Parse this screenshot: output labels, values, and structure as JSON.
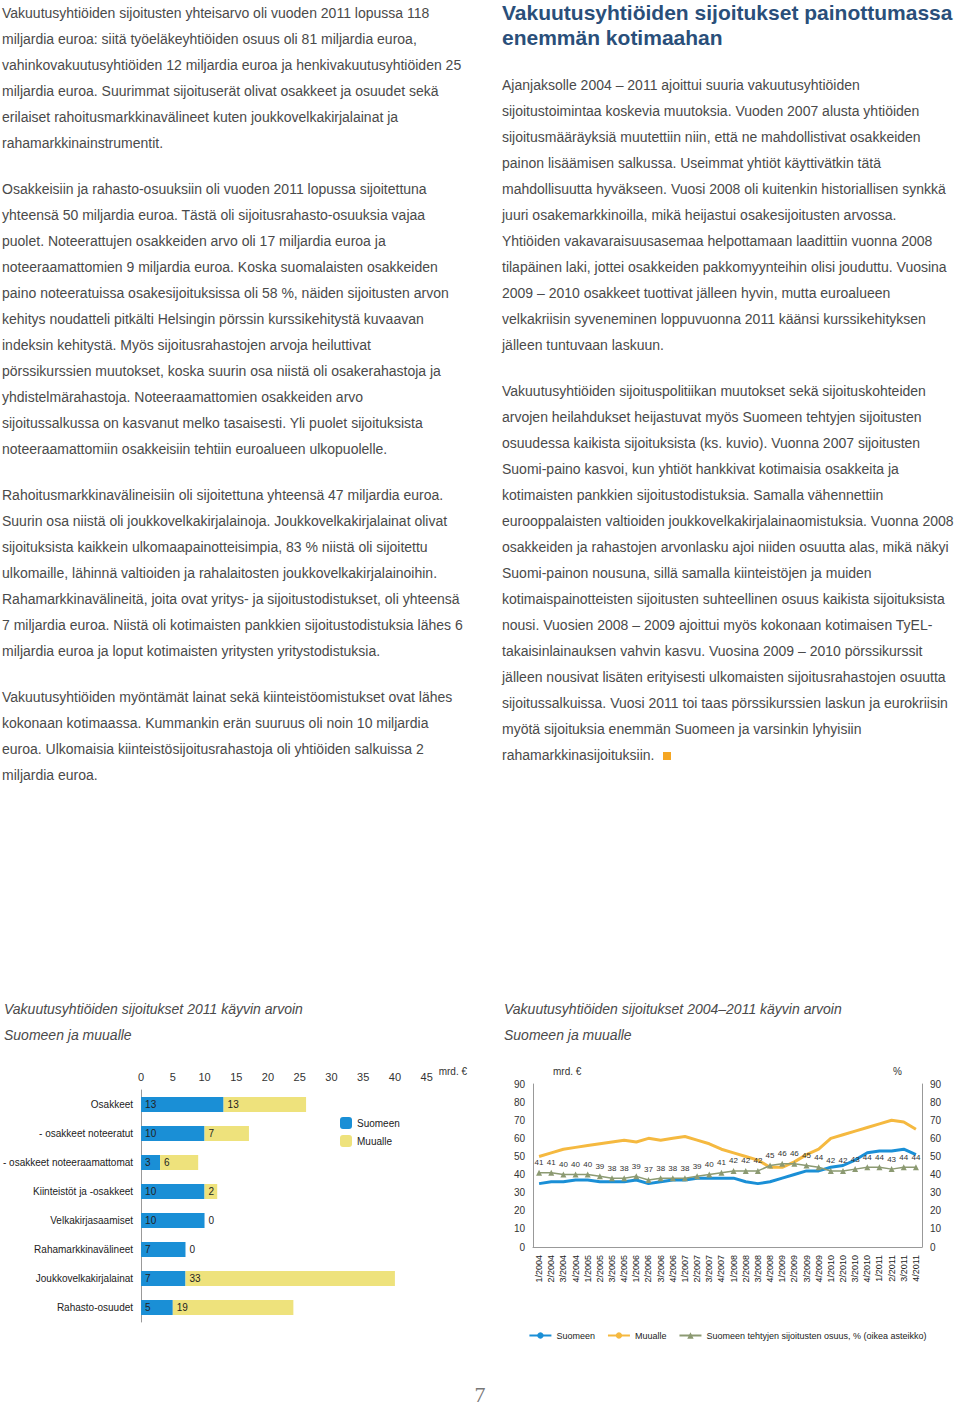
{
  "left_column": {
    "paragraphs": [
      "Vakuutusyhtiöiden sijoitusten yhteisarvo oli vuoden 2011 lopussa 118 miljardia euroa: siitä työeläkeyhtiöiden osuus oli 81 miljardia euroa, vahinkovakuutusyhtiöiden 12 miljardia euroa ja henkivakuutusyhtiöiden 25 miljardia euroa. Suurimmat sijoituserät olivat osakkeet ja osuudet sekä erilaiset rahoitusmarkkinavälineet kuten joukkovelkakirjalainat ja rahamarkkinainstrumentit.",
      "Osakkeisiin ja rahasto-osuuksiin oli vuoden 2011 lopussa sijoitettuna yhteensä 50 miljardia euroa. Tästä oli sijoitusrahasto-osuuksia vajaa puolet. Noteerattujen osakkeiden arvo oli 17 miljardia euroa ja noteeraamattomien 9 miljardia euroa. Koska suomalaisten osakkeiden paino noteeratuissa osakesijoituksissa oli 58 %, näiden sijoitusten arvon kehitys noudatteli pitkälti Helsingin pörssin kurssikehitystä kuvaavan indeksin kehitystä. Myös sijoitusrahastojen arvoja heiluttivat pörssikurssien muutokset, koska suurin osa niistä oli osakerahastoja ja yhdistelmärahastoja. Noteeraamattomien osakkeiden arvo sijoitussalkussa on kasvanut melko tasaisesti. Yli puolet sijoituksista noteeraamattomiin osakkeisiin tehtiin euroalueen ulkopuolelle.",
      "Rahoitusmarkkinavälineisiin oli sijoitettuna yhteensä 47 miljardia euroa. Suurin osa niistä oli joukkovelkakirjalainoja. Joukkovelkakirjalainat olivat sijoituksista kaikkein ulkomaapainotteisimpia, 83 % niistä oli sijoitettu ulkomaille, lähinnä valtioiden ja rahalaitosten joukkovelkakirjalainoihin. Rahamarkkinavälineitä, joita ovat yritys- ja sijoitustodistukset, oli yhteensä 7 miljardia euroa. Niistä oli kotimaisten pankkien sijoitustodistuksia lähes 6 miljardia euroa ja loput kotimaisten yritysten yritystodistuksia.",
      "Vakuutusyhtiöiden myöntämät lainat sekä kiinteistöomistukset ovat lähes kokonaan kotimaassa. Kummankin erän suuruus oli noin 10 miljardia euroa. Ulkomaisia kiinteistösijoitusrahastoja oli yhtiöiden salkuissa 2 miljardia euroa."
    ]
  },
  "right_column": {
    "heading": "Vakuutusyhtiöiden sijoitukset painottumassa enemmän kotimaahan",
    "paragraphs": [
      "Ajanjaksolle 2004 – 2011 ajoittui suuria vakuutusyhtiöiden sijoitustoimintaa koskevia muutoksia. Vuoden 2007 alusta yhtiöiden sijoitusmääräyksiä muutettiin niin, että ne mahdollistivat osakkeiden painon lisäämisen salkussa. Useimmat yhtiöt käyttivätkin tätä mahdollisuutta hyväkseen. Vuosi 2008 oli kuitenkin historiallisen synkkä juuri osakemarkkinoilla, mikä heijastui osakesijoitusten arvossa. Yhtiöiden vakavaraisuusasemaa helpottamaan laadittiin vuonna 2008 tilapäinen laki, jottei osakkeiden pakkomyynteihin olisi jouduttu. Vuosina 2009 – 2010 osakkeet tuottivat jälleen hyvin, mutta euroalueen velkakriisin syveneminen loppuvuonna 2011 käänsi kurssikehityksen jälleen tuntuvaan laskuun.",
      "Vakuutusyhtiöiden sijoituspolitiikan muutokset sekä sijoituskohteiden arvojen heilahdukset heijastuvat myös Suomeen tehtyjen sijoitusten osuudessa kaikista sijoituksista (ks. kuvio). Vuonna 2007 sijoitusten Suomi-paino kasvoi, kun yhtiöt hankkivat kotimaisia osakkeita ja kotimaisten pankkien sijoitustodistuksia. Samalla vähennettiin eurooppalaisten valtioiden joukkovelkakirjalainaomistuksia. Vuonna 2008 osakkeiden ja rahastojen arvonlasku ajoi niiden osuutta alas, mikä näkyi Suomi-painon nousuna, sillä samalla kiinteistöjen ja muiden kotimaispainotteisten sijoitusten suhteellinen osuus kaikista sijoituksista nousi. Vuosien 2008 – 2009 ajoittui myös kokonaan kotimaisen TyEL-takaisinlainauksen vahvin kasvu. Vuosina 2009 – 2010 pörssikurssit jälleen nousivat lisäten erityisesti ulkomaisten sijoitusrahastojen osuutta sijoitussalkuissa. Vuosi 2011 toi taas pörssikurssien laskun ja eurokriisin myötä sijoituksia enemmän Suomeen ja varsinkin lyhyisiin rahamarkkinasijoituksiin."
    ]
  },
  "chart_data": [
    {
      "type": "bar",
      "title": "Vakuutusyhtiöiden sijoitukset 2011 käyvin arvoin\nSuomeen ja muualle",
      "orientation": "horizontal",
      "stacked": true,
      "data_labels": true,
      "legend": "right",
      "grid": false,
      "x_label": "mrd. €",
      "xlim": [
        0,
        45
      ],
      "xticks": [
        0,
        5,
        10,
        15,
        20,
        25,
        30,
        35,
        40,
        45
      ],
      "categories": [
        "Osakkeet",
        "- osakkeet noteeratut",
        "- osakkeet noteeraamattomat",
        "Kiinteistöt ja -osakkeet",
        "Velkakirjasaamiset",
        "Rahamarkkinavälineet",
        "Joukkovelkakirjalainat",
        "Rahasto-osuudet"
      ],
      "series": [
        {
          "name": "Suomeen",
          "color": "#1a8fd6",
          "values": [
            13,
            10,
            3,
            10,
            10,
            7,
            7,
            5
          ]
        },
        {
          "name": "Muualle",
          "color": "#eee27c",
          "values": [
            13,
            7,
            6,
            2,
            0,
            0,
            33,
            19
          ]
        }
      ]
    },
    {
      "type": "line",
      "title": "Vakuutusyhtiöiden sijoitukset 2004–2011 käyvin arvoin\nSuomeen ja muualle",
      "legend": "bottom",
      "grid": false,
      "y_label": "mrd. €",
      "y2_label": "%",
      "ylim": [
        0,
        90
      ],
      "yticks": [
        0,
        10,
        20,
        30,
        40,
        50,
        60,
        70,
        80,
        90
      ],
      "y2lim": [
        0,
        90
      ],
      "y2ticks": [
        0,
        10,
        20,
        30,
        40,
        50,
        60,
        70,
        80,
        90
      ],
      "categories": [
        "1/2004",
        "2/2004",
        "3/2004",
        "4/2004",
        "1/2005",
        "2/2005",
        "3/2005",
        "4/2005",
        "1/2006",
        "2/2006",
        "3/2006",
        "4/2006",
        "1/2007",
        "2/2007",
        "3/2007",
        "4/2007",
        "1/2008",
        "2/2008",
        "3/2008",
        "4/2008",
        "1/2009",
        "2/2009",
        "3/2009",
        "4/2009",
        "1/2010",
        "2/2010",
        "3/2010",
        "4/2010",
        "1/2011",
        "2/2011",
        "3/2011",
        "4/2011"
      ],
      "series": [
        {
          "name": "Suomeen",
          "color": "#1a8fd6",
          "marker": "none",
          "line_style": "solid",
          "values": [
            35,
            36,
            36,
            37,
            37,
            36,
            36,
            36,
            37,
            35,
            36,
            37,
            37,
            38,
            38,
            38,
            38,
            36,
            35,
            36,
            38,
            40,
            42,
            42,
            44,
            45,
            48,
            52,
            53,
            53,
            54,
            51
          ]
        },
        {
          "name": "Muualle",
          "color": "#f5b940",
          "marker": "none",
          "line_style": "solid",
          "values": [
            50,
            52,
            54,
            55,
            56,
            57,
            58,
            59,
            58,
            60,
            59,
            60,
            61,
            59,
            57,
            54,
            52,
            50,
            48,
            44,
            44,
            47,
            51,
            54,
            60,
            62,
            64,
            66,
            68,
            70,
            69,
            65
          ]
        },
        {
          "name": "Suomeen tehtyjen sijoitusten osuus, % (oikea asteikko)",
          "color": "#8c9a72",
          "marker": "triangle",
          "line_style": "solid",
          "axis": "y2",
          "data_labels": true,
          "values": [
            41,
            41,
            40,
            40,
            40,
            39,
            38,
            38,
            39,
            37,
            38,
            38,
            38,
            39,
            40,
            41,
            42,
            42,
            42,
            45,
            46,
            46,
            45,
            44,
            42,
            42,
            43,
            44,
            44,
            43,
            44,
            44
          ]
        }
      ]
    }
  ],
  "page_number": 7
}
